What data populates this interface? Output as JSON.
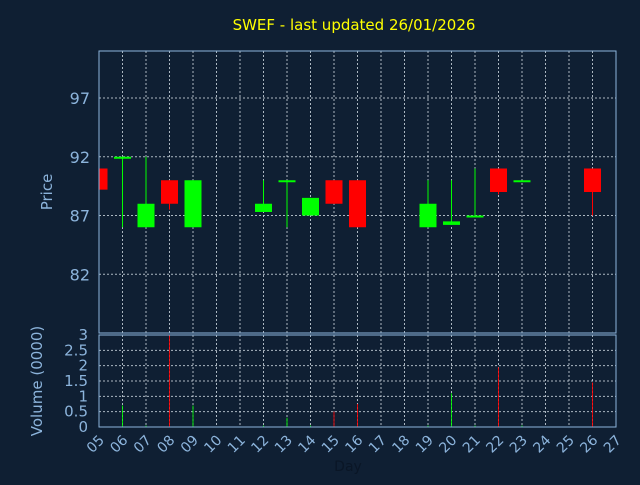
{
  "chart_data": {
    "type": "candlestick",
    "title": "SWEF - last updated 26/01/2026",
    "xlabel": "Day",
    "price_ylabel": "Price",
    "volume_ylabel": "Volume (0000)",
    "x_ticks": [
      "05",
      "06",
      "07",
      "08",
      "09",
      "10",
      "11",
      "12",
      "13",
      "14",
      "15",
      "16",
      "17",
      "18",
      "19",
      "20",
      "21",
      "22",
      "23",
      "24",
      "25",
      "26",
      "27"
    ],
    "price_ticks": [
      82,
      87,
      92,
      97
    ],
    "price_range": [
      77,
      101
    ],
    "volume_ticks": [
      "0",
      "0.5",
      "1",
      "1.5",
      "2",
      "2.5",
      "3"
    ],
    "volume_range": [
      0,
      3
    ],
    "grid": true,
    "colors": {
      "up": "#00ff00",
      "down": "#ff0000",
      "background": "#0f1f33",
      "title": "#ffff00"
    },
    "candles": [
      {
        "day": "05",
        "open": 91.0,
        "close": 89.2,
        "high": 91.0,
        "low": 89.2
      },
      {
        "day": "06",
        "open": 92.0,
        "close": 92.0,
        "high": 92.0,
        "low": 86.0
      },
      {
        "day": "07",
        "open": 86.0,
        "close": 88.0,
        "high": 92.0,
        "low": 86.0
      },
      {
        "day": "08",
        "open": 90.0,
        "close": 88.0,
        "high": 90.0,
        "low": 87.5
      },
      {
        "day": "09",
        "open": 86.0,
        "close": 90.0,
        "high": 90.0,
        "low": 86.0
      },
      {
        "day": "12",
        "open": 87.3,
        "close": 88.0,
        "high": 90.0,
        "low": 87.3
      },
      {
        "day": "13",
        "open": 90.0,
        "close": 90.0,
        "high": 90.0,
        "low": 86.0
      },
      {
        "day": "14",
        "open": 87.0,
        "close": 88.5,
        "high": 88.5,
        "low": 87.0
      },
      {
        "day": "15",
        "open": 90.0,
        "close": 88.0,
        "high": 90.0,
        "low": 88.0
      },
      {
        "day": "16",
        "open": 90.0,
        "close": 86.0,
        "high": 90.0,
        "low": 86.0
      },
      {
        "day": "19",
        "open": 86.0,
        "close": 88.0,
        "high": 90.0,
        "low": 86.0
      },
      {
        "day": "20",
        "open": 86.2,
        "close": 86.5,
        "high": 90.0,
        "low": 86.2
      },
      {
        "day": "21",
        "open": 87.0,
        "close": 87.0,
        "high": 91.0,
        "low": 87.0
      },
      {
        "day": "22",
        "open": 91.0,
        "close": 89.0,
        "high": 91.0,
        "low": 88.8
      },
      {
        "day": "23",
        "open": 90.0,
        "close": 90.0,
        "high": 90.0,
        "low": 90.0
      },
      {
        "day": "26",
        "open": 91.0,
        "close": 89.0,
        "high": 91.0,
        "low": 87.0
      }
    ],
    "volume": [
      {
        "day": "05",
        "value": 0.05,
        "dir": "down"
      },
      {
        "day": "06",
        "value": 0.7,
        "dir": "up"
      },
      {
        "day": "07",
        "value": 0.05,
        "dir": "up"
      },
      {
        "day": "08",
        "value": 3.0,
        "dir": "down"
      },
      {
        "day": "09",
        "value": 0.7,
        "dir": "up"
      },
      {
        "day": "12",
        "value": 0.05,
        "dir": "up"
      },
      {
        "day": "13",
        "value": 0.3,
        "dir": "up"
      },
      {
        "day": "14",
        "value": 0.05,
        "dir": "up"
      },
      {
        "day": "15",
        "value": 0.5,
        "dir": "down"
      },
      {
        "day": "16",
        "value": 0.75,
        "dir": "down"
      },
      {
        "day": "19",
        "value": 0.05,
        "dir": "up"
      },
      {
        "day": "20",
        "value": 1.1,
        "dir": "up"
      },
      {
        "day": "21",
        "value": 0.05,
        "dir": "up"
      },
      {
        "day": "22",
        "value": 1.95,
        "dir": "down"
      },
      {
        "day": "23",
        "value": 0.05,
        "dir": "up"
      },
      {
        "day": "26",
        "value": 1.45,
        "dir": "down"
      }
    ]
  }
}
